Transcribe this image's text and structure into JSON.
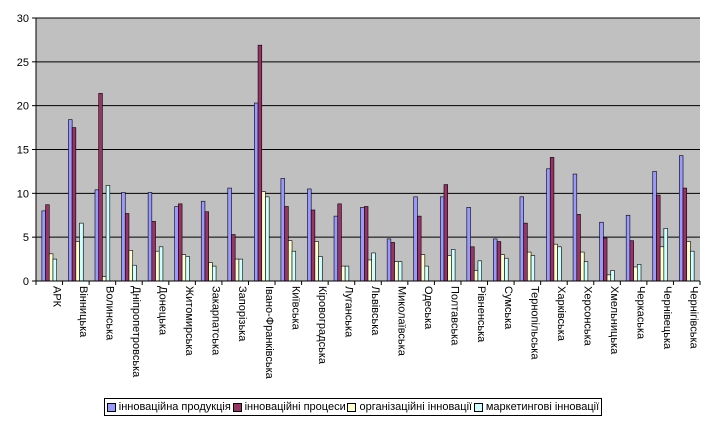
{
  "chart_data": {
    "type": "bar",
    "title": "",
    "xlabel": "",
    "ylabel": "",
    "ylim": [
      0,
      30
    ],
    "yticks": [
      0,
      5,
      10,
      15,
      20,
      25,
      30
    ],
    "grid": "horizontal",
    "legend_position": "bottom",
    "categories": [
      "АРК",
      "Вінницька",
      "Волинська",
      "Дніпропетровська",
      "Донецька",
      "Житомирська",
      "Закарпатська",
      "Запорізька",
      "Івано-Франківська",
      "Київська",
      "Кіровоградська",
      "Луганська",
      "Львівська",
      "Миколаївська",
      "Одеська",
      "Полтавська",
      "Рівненська",
      "Сумська",
      "Тернопільська",
      "Харківська",
      "Херсонська",
      "Хмельницька",
      "Черкаська",
      "Чернівецька",
      "Чернігівська"
    ],
    "series": [
      {
        "name": "інноваційна продукція",
        "color": "#9999ff",
        "values": [
          8.0,
          18.4,
          10.4,
          10.1,
          10.1,
          8.5,
          9.1,
          10.6,
          20.3,
          11.7,
          10.5,
          7.4,
          8.4,
          4.8,
          9.6,
          9.6,
          8.4,
          4.8,
          9.6,
          12.8,
          12.2,
          6.7,
          7.5,
          12.5,
          14.3
        ]
      },
      {
        "name": "інноваційні процеси",
        "color": "#993366",
        "values": [
          8.7,
          17.5,
          21.4,
          7.7,
          6.8,
          8.8,
          7.9,
          5.3,
          26.9,
          8.5,
          8.1,
          8.8,
          8.5,
          4.4,
          7.4,
          11.0,
          3.9,
          4.5,
          6.6,
          14.1,
          7.6,
          4.9,
          4.6,
          9.8,
          10.6
        ]
      },
      {
        "name": "організаційні інновації",
        "color": "#ffffcc",
        "values": [
          3.1,
          4.5,
          0.5,
          3.5,
          3.4,
          3.0,
          2.1,
          2.5,
          10.2,
          4.6,
          4.5,
          1.7,
          2.4,
          2.2,
          3.0,
          2.9,
          1.2,
          3.0,
          3.3,
          4.2,
          3.3,
          0.7,
          1.6,
          3.9,
          4.5
        ]
      },
      {
        "name": "маркетингові інновації",
        "color": "#ccffff",
        "values": [
          2.5,
          6.6,
          10.9,
          1.8,
          3.9,
          2.8,
          1.7,
          2.5,
          9.6,
          3.4,
          2.8,
          1.7,
          3.2,
          2.2,
          1.7,
          3.6,
          2.3,
          2.6,
          2.9,
          3.9,
          2.2,
          1.2,
          1.9,
          6.0,
          3.4
        ]
      }
    ]
  }
}
